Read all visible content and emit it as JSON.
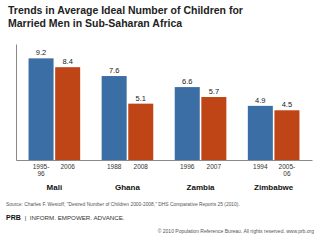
{
  "chart_data": {
    "type": "bar",
    "title": "Trends in Average Ideal Number of Children for\nMarried Men in Sub-Saharan Africa",
    "categories": [
      "Mali",
      "Ghana",
      "Zambia",
      "Zimbabwe"
    ],
    "series": [
      {
        "color": "#3a6ea5",
        "values": [
          9.2,
          7.6,
          6.6,
          4.9
        ],
        "labels": [
          "1995-\n96",
          "1988",
          "1996",
          "1994"
        ]
      },
      {
        "color": "#bf4516",
        "values": [
          8.4,
          5.1,
          5.7,
          4.5
        ],
        "labels": [
          "2006",
          "2008",
          "2007",
          "2005-\n06"
        ]
      }
    ],
    "ylim": [
      0,
      10.5
    ],
    "grid": false,
    "data_labels": true,
    "tick_labels": "x",
    "annotations": [
      "Source: Charles F. Westoff, \"Desired Number of Children 2000-2008,\" DHS Comparative Reports 25 (2010).",
      "PRB",
      "|  INFORM. EMPOWER. ADVANCE.",
      "© 2010 Population Reference Bureau. All rights reserved. www.prb.org"
    ]
  }
}
